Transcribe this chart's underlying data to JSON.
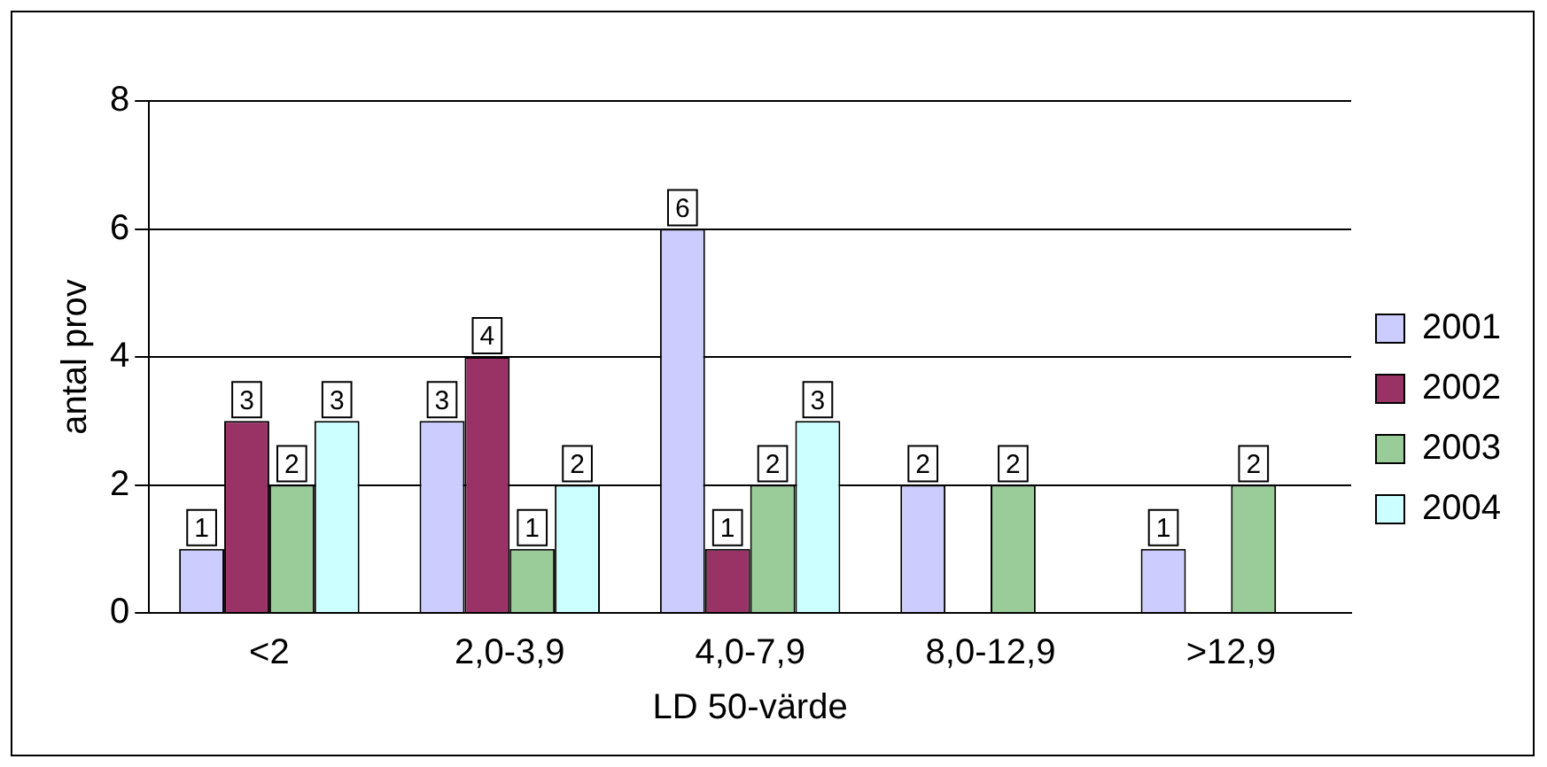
{
  "chart_data": {
    "type": "bar",
    "xlabel": "LD 50-värde",
    "ylabel": "antal prov",
    "categories": [
      "<2",
      "2,0-3,9",
      "4,0-7,9",
      "8,0-12,9",
      ">12,9"
    ],
    "series": [
      {
        "name": "2001",
        "color": "#ccccff",
        "values": [
          1,
          3,
          6,
          2,
          1
        ]
      },
      {
        "name": "2002",
        "color": "#993366",
        "values": [
          3,
          4,
          1,
          null,
          null
        ]
      },
      {
        "name": "2003",
        "color": "#99cc99",
        "values": [
          2,
          1,
          2,
          2,
          2
        ]
      },
      {
        "name": "2004",
        "color": "#ccffff",
        "values": [
          3,
          2,
          3,
          null,
          null
        ]
      }
    ],
    "ylim": [
      0,
      8
    ],
    "yticks": [
      0,
      2,
      4,
      6,
      8
    ],
    "grid": "y",
    "legend": "right",
    "data_labels": true
  }
}
